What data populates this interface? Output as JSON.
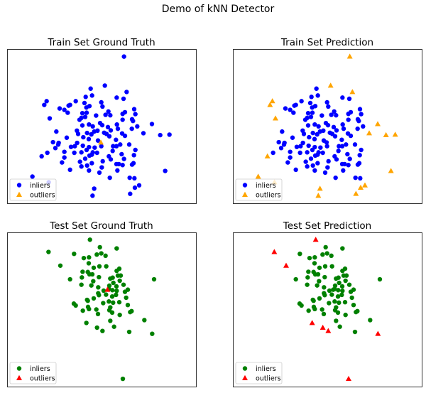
{
  "chart_data": {
    "type": "scatter",
    "title": "Demo of kNN Detector",
    "xlim": [
      0,
      7.98
    ],
    "ylim": [
      0,
      6.54
    ],
    "grid": false,
    "axes_ticks": false,
    "point_format": [
      "x",
      "y",
      "ground_truth_outlier",
      "predicted_outlier"
    ],
    "datasets": {
      "train": [
        [
          4.94,
          6.22,
          0,
          1
        ],
        [
          4.13,
          4.99,
          0,
          1
        ],
        [
          3.53,
          4.86,
          0,
          0
        ],
        [
          5.05,
          4.72,
          0,
          1
        ],
        [
          4.63,
          4.48,
          0,
          0
        ],
        [
          4.92,
          4.43,
          0,
          0
        ],
        [
          3.59,
          4.57,
          0,
          0
        ],
        [
          3.32,
          4.51,
          0,
          0
        ],
        [
          1.67,
          4.33,
          0,
          1
        ],
        [
          1.57,
          4.17,
          0,
          1
        ],
        [
          2.9,
          4.33,
          0,
          0
        ],
        [
          3.27,
          4.25,
          0,
          0
        ],
        [
          3.98,
          4.28,
          0,
          0
        ],
        [
          2.66,
          4.17,
          0,
          0
        ],
        [
          2.6,
          4.14,
          0,
          0
        ],
        [
          2.22,
          4.02,
          0,
          0
        ],
        [
          2.42,
          3.96,
          0,
          0
        ],
        [
          2.56,
          3.84,
          0,
          0
        ],
        [
          3.48,
          4.12,
          0,
          0
        ],
        [
          3.35,
          4.06,
          0,
          0
        ],
        [
          4.03,
          4.1,
          0,
          0
        ],
        [
          5.37,
          3.99,
          0,
          0
        ],
        [
          5.42,
          3.78,
          0,
          0
        ],
        [
          4.98,
          3.86,
          0,
          0
        ],
        [
          4.88,
          3.79,
          0,
          0
        ],
        [
          4.28,
          3.89,
          0,
          0
        ],
        [
          4.36,
          3.73,
          0,
          0
        ],
        [
          4.16,
          3.75,
          0,
          0
        ],
        [
          3.18,
          3.82,
          0,
          0
        ],
        [
          3.36,
          3.84,
          0,
          0
        ],
        [
          3.76,
          3.72,
          0,
          0
        ],
        [
          1.8,
          3.6,
          0,
          1
        ],
        [
          3.06,
          3.54,
          0,
          0
        ],
        [
          3.14,
          3.62,
          0,
          0
        ],
        [
          3.3,
          3.66,
          0,
          0
        ],
        [
          4.88,
          3.54,
          0,
          0
        ],
        [
          5.28,
          3.56,
          0,
          0
        ],
        [
          5.32,
          3.49,
          0,
          0
        ],
        [
          6.12,
          3.36,
          0,
          1
        ],
        [
          4.64,
          3.34,
          0,
          0
        ],
        [
          5.5,
          3.26,
          0,
          0
        ],
        [
          5.27,
          3.16,
          0,
          0
        ],
        [
          3.46,
          3.34,
          0,
          0
        ],
        [
          3.62,
          3.26,
          0,
          0
        ],
        [
          3.93,
          3.4,
          0,
          0
        ],
        [
          4.02,
          3.31,
          0,
          0
        ],
        [
          4.26,
          3.23,
          0,
          0
        ],
        [
          4.38,
          3.09,
          0,
          0
        ],
        [
          4.68,
          3.16,
          0,
          0
        ],
        [
          3.18,
          3.3,
          0,
          0
        ],
        [
          2.95,
          3.08,
          0,
          0
        ],
        [
          2.08,
          3.04,
          0,
          0
        ],
        [
          3.0,
          2.94,
          0,
          0
        ],
        [
          3.38,
          2.98,
          0,
          0
        ],
        [
          3.56,
          2.92,
          0,
          0
        ],
        [
          3.68,
          3.04,
          0,
          0
        ],
        [
          3.82,
          3.08,
          0,
          0
        ],
        [
          4.1,
          2.99,
          0,
          0
        ],
        [
          4.2,
          2.94,
          0,
          0
        ],
        [
          4.32,
          2.84,
          0,
          0
        ],
        [
          4.86,
          2.96,
          0,
          0
        ],
        [
          4.98,
          2.86,
          0,
          0
        ],
        [
          5.76,
          2.97,
          0,
          1
        ],
        [
          6.47,
          2.89,
          0,
          1
        ],
        [
          6.86,
          2.91,
          0,
          1
        ],
        [
          2.52,
          2.78,
          0,
          0
        ],
        [
          3.22,
          2.8,
          0,
          0
        ],
        [
          3.45,
          2.72,
          0,
          0
        ],
        [
          3.84,
          2.66,
          0,
          0
        ],
        [
          4.6,
          2.69,
          0,
          0
        ],
        [
          1.94,
          2.59,
          0,
          0
        ],
        [
          2.18,
          2.56,
          0,
          0
        ],
        [
          2.16,
          2.49,
          0,
          0
        ],
        [
          2.96,
          2.56,
          0,
          0
        ],
        [
          2.7,
          2.39,
          0,
          0
        ],
        [
          2.86,
          2.42,
          0,
          0
        ],
        [
          3.2,
          2.44,
          0,
          0
        ],
        [
          3.46,
          2.38,
          0,
          0
        ],
        [
          3.7,
          2.36,
          0,
          0
        ],
        [
          3.98,
          2.42,
          0,
          0
        ],
        [
          4.48,
          2.42,
          0,
          0
        ],
        [
          4.62,
          2.42,
          0,
          0
        ],
        [
          4.78,
          2.49,
          0,
          0
        ],
        [
          5.16,
          2.49,
          0,
          0
        ],
        [
          2.04,
          2.34,
          0,
          0
        ],
        [
          5.42,
          2.26,
          0,
          0
        ],
        [
          1.7,
          2.14,
          0,
          0
        ],
        [
          2.42,
          2.18,
          0,
          0
        ],
        [
          2.84,
          2.14,
          0,
          0
        ],
        [
          3.14,
          2.16,
          0,
          0
        ],
        [
          3.36,
          2.26,
          0,
          0
        ],
        [
          3.62,
          2.16,
          0,
          0
        ],
        [
          3.8,
          2.14,
          0,
          0
        ],
        [
          4.46,
          2.22,
          0,
          0
        ],
        [
          4.84,
          2.08,
          0,
          0
        ],
        [
          1.46,
          1.99,
          0,
          1
        ],
        [
          2.42,
          1.94,
          0,
          0
        ],
        [
          3.48,
          2.02,
          0,
          0
        ],
        [
          3.58,
          2.06,
          0,
          0
        ],
        [
          4.3,
          1.99,
          0,
          0
        ],
        [
          4.38,
          1.86,
          0,
          0
        ],
        [
          4.94,
          1.88,
          0,
          0
        ],
        [
          5.36,
          2.04,
          0,
          0
        ],
        [
          3.3,
          1.89,
          0,
          0
        ],
        [
          2.32,
          1.73,
          0,
          0
        ],
        [
          3.08,
          1.76,
          0,
          0
        ],
        [
          4.04,
          1.78,
          0,
          0
        ],
        [
          3.58,
          1.7,
          0,
          0
        ],
        [
          3.38,
          1.6,
          0,
          0
        ],
        [
          3.14,
          1.56,
          0,
          0
        ],
        [
          4.0,
          1.52,
          0,
          0
        ],
        [
          4.62,
          1.66,
          0,
          0
        ],
        [
          4.72,
          1.66,
          0,
          0
        ],
        [
          5.28,
          1.64,
          0,
          0
        ],
        [
          5.34,
          1.7,
          0,
          0
        ],
        [
          4.88,
          1.62,
          0,
          0
        ],
        [
          2.66,
          1.42,
          0,
          0
        ],
        [
          3.46,
          1.39,
          0,
          0
        ],
        [
          3.9,
          1.3,
          0,
          0
        ],
        [
          4.66,
          1.39,
          0,
          0
        ],
        [
          6.68,
          1.37,
          0,
          1
        ],
        [
          1.07,
          1.13,
          0,
          1
        ],
        [
          4.34,
          1.08,
          0,
          0
        ],
        [
          5.18,
          1.08,
          0,
          0
        ],
        [
          5.38,
          1.06,
          0,
          0
        ],
        [
          1.76,
          0.89,
          0,
          1
        ],
        [
          5.58,
          0.76,
          0,
          1
        ],
        [
          5.4,
          0.66,
          0,
          1
        ],
        [
          3.68,
          0.62,
          0,
          1
        ],
        [
          5.2,
          0.4,
          0,
          1
        ],
        [
          3.61,
          0.32,
          0,
          1
        ],
        [
          3.96,
          2.58,
          1,
          0
        ]
      ],
      "test": [
        [
          3.5,
          6.23,
          0,
          1
        ],
        [
          1.75,
          5.71,
          0,
          1
        ],
        [
          2.83,
          5.63,
          0,
          0
        ],
        [
          3.92,
          5.91,
          0,
          0
        ],
        [
          4.63,
          5.86,
          0,
          0
        ],
        [
          3.79,
          5.6,
          0,
          0
        ],
        [
          3.98,
          5.65,
          0,
          0
        ],
        [
          4.16,
          5.55,
          0,
          0
        ],
        [
          3.24,
          5.45,
          0,
          0
        ],
        [
          3.46,
          5.48,
          0,
          0
        ],
        [
          3.45,
          5.23,
          0,
          0
        ],
        [
          2.25,
          5.13,
          0,
          1
        ],
        [
          3.66,
          5.04,
          0,
          0
        ],
        [
          3.9,
          5.1,
          0,
          0
        ],
        [
          4.19,
          5.1,
          0,
          0
        ],
        [
          4.74,
          5.0,
          0,
          0
        ],
        [
          4.63,
          4.91,
          0,
          0
        ],
        [
          3.19,
          4.87,
          0,
          0
        ],
        [
          3.41,
          4.86,
          0,
          0
        ],
        [
          3.48,
          4.76,
          0,
          0
        ],
        [
          3.6,
          4.76,
          0,
          0
        ],
        [
          3.88,
          4.64,
          0,
          0
        ],
        [
          4.36,
          4.58,
          0,
          0
        ],
        [
          4.46,
          4.62,
          0,
          0
        ],
        [
          4.68,
          4.71,
          0,
          0
        ],
        [
          4.8,
          4.71,
          0,
          0
        ],
        [
          2.66,
          4.55,
          0,
          0
        ],
        [
          3.16,
          4.63,
          0,
          0
        ],
        [
          3.64,
          4.47,
          0,
          0
        ],
        [
          4.76,
          4.49,
          0,
          0
        ],
        [
          6.21,
          4.55,
          0,
          0
        ],
        [
          3.14,
          4.32,
          0,
          0
        ],
        [
          3.56,
          4.29,
          0,
          0
        ],
        [
          3.85,
          4.21,
          0,
          0
        ],
        [
          4.32,
          4.28,
          0,
          0
        ],
        [
          4.49,
          4.4,
          0,
          0
        ],
        [
          4.62,
          4.25,
          0,
          0
        ],
        [
          4.92,
          4.32,
          0,
          0
        ],
        [
          4.3,
          4.14,
          0,
          0
        ],
        [
          4.08,
          4.07,
          0,
          0
        ],
        [
          4.45,
          4.09,
          0,
          0
        ],
        [
          4.63,
          4.06,
          0,
          0
        ],
        [
          5.1,
          4.11,
          0,
          0
        ],
        [
          4.98,
          4.02,
          0,
          0
        ],
        [
          3.85,
          3.96,
          0,
          0
        ],
        [
          3.88,
          3.88,
          0,
          0
        ],
        [
          4.18,
          3.9,
          0,
          0
        ],
        [
          4.6,
          3.89,
          0,
          0
        ],
        [
          4.44,
          3.82,
          0,
          0
        ],
        [
          3.66,
          3.74,
          0,
          0
        ],
        [
          3.38,
          3.68,
          0,
          0
        ],
        [
          3.41,
          3.64,
          0,
          0
        ],
        [
          5.03,
          3.77,
          0,
          0
        ],
        [
          2.82,
          3.52,
          0,
          0
        ],
        [
          2.9,
          3.44,
          0,
          0
        ],
        [
          4.3,
          3.61,
          0,
          0
        ],
        [
          4.48,
          3.56,
          0,
          0
        ],
        [
          4.74,
          3.58,
          0,
          0
        ],
        [
          4.06,
          3.54,
          0,
          0
        ],
        [
          3.42,
          3.38,
          0,
          0
        ],
        [
          3.46,
          3.29,
          0,
          0
        ],
        [
          3.77,
          3.27,
          0,
          0
        ],
        [
          4.36,
          3.36,
          0,
          0
        ],
        [
          5.1,
          3.46,
          0,
          0
        ],
        [
          3.2,
          3.22,
          0,
          0
        ],
        [
          4.32,
          3.24,
          0,
          0
        ],
        [
          4.44,
          3.14,
          0,
          0
        ],
        [
          3.84,
          3.08,
          0,
          0
        ],
        [
          4.76,
          3.04,
          0,
          0
        ],
        [
          5.2,
          3.16,
          0,
          0
        ],
        [
          5.26,
          3.2,
          0,
          0
        ],
        [
          4.36,
          2.79,
          0,
          0
        ],
        [
          5.8,
          2.82,
          0,
          0
        ],
        [
          3.35,
          2.7,
          0,
          1
        ],
        [
          3.8,
          2.5,
          0,
          1
        ],
        [
          4.52,
          2.54,
          0,
          0
        ],
        [
          4.03,
          2.36,
          0,
          1
        ],
        [
          5.16,
          2.32,
          0,
          0
        ],
        [
          6.13,
          2.24,
          0,
          1
        ],
        [
          4.89,
          0.33,
          0,
          1
        ],
        [
          4.24,
          4.11,
          1,
          0
        ]
      ]
    },
    "subplots": [
      {
        "title": "Train Set Ground Truth",
        "dataset": "train",
        "label": "ground_truth",
        "inlier_color": "#0000ff",
        "outlier_color": "#ffa500",
        "legend": [
          "inliers",
          "outliers"
        ],
        "legend_position": "lower-left"
      },
      {
        "title": "Train Set Prediction",
        "dataset": "train",
        "label": "prediction",
        "inlier_color": "#0000ff",
        "outlier_color": "#ffa500",
        "legend": [
          "inliers",
          "outliers"
        ],
        "legend_position": "lower-left"
      },
      {
        "title": "Test Set Ground Truth",
        "dataset": "test",
        "label": "ground_truth",
        "inlier_color": "#008000",
        "outlier_color": "#ff0000",
        "legend": [
          "inliers",
          "outliers"
        ],
        "legend_position": "lower-left"
      },
      {
        "title": "Test Set Prediction",
        "dataset": "test",
        "label": "prediction",
        "inlier_color": "#008000",
        "outlier_color": "#ff0000",
        "legend": [
          "inliers",
          "outliers"
        ],
        "legend_position": "lower-left"
      }
    ]
  }
}
